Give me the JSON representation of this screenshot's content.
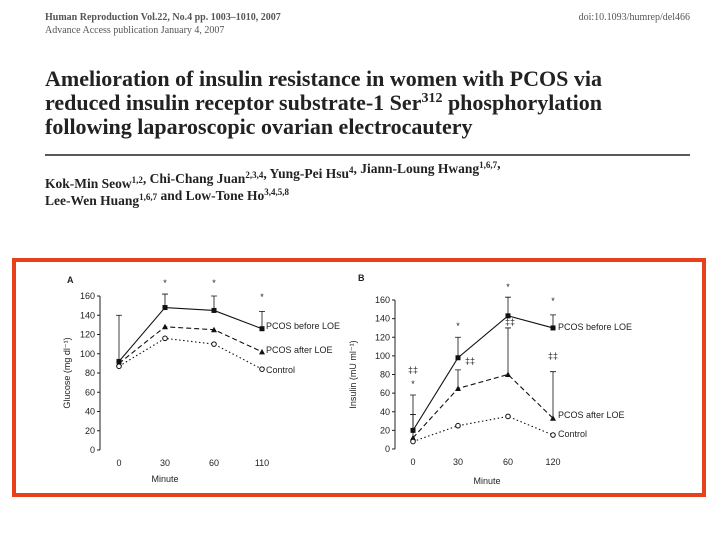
{
  "header": {
    "journal": "Human Reproduction Vol.22, No.4 pp. 1003–1010, 2007",
    "doi": "doi:10.1093/humrep/del466",
    "advance": "Advance Access publication January 4, 2007"
  },
  "title": {
    "line1": "Amelioration of insulin resistance in women with PCOS via",
    "line2": "reduced insulin receptor substrate-1 Ser",
    "line2_sup": "312",
    "line2_end": " phosphorylation",
    "line3": "following laparoscopic ovarian electrocautery"
  },
  "authors": [
    [
      {
        "text": "Kok-Min Seow",
        "sup": "1,2"
      },
      {
        "text": ", Chi-Chang Juan",
        "sup": "2,3,4"
      },
      {
        "text": ", Yung-Pei Hsu",
        "sup": "4"
      },
      {
        "text": ", Jiann-Loung Hwang",
        "sup": "1,6,7"
      },
      {
        "text": ","
      }
    ],
    [
      {
        "text": "Lee-Wen Huang",
        "sup": "1,6,7"
      },
      {
        "text": " and Low-Tone Ho",
        "sup": "3,4,5,8"
      }
    ]
  ],
  "chart_data": [
    {
      "type": "line",
      "panel": "A",
      "categories": [
        "0",
        "30",
        "60",
        "110"
      ],
      "xlabel": "Minute",
      "ylabel": "Glucose (mg dl⁻¹)",
      "ylim": [
        0,
        160
      ],
      "yticks": [
        0,
        20,
        40,
        60,
        80,
        100,
        120,
        140,
        160
      ],
      "legend": "inline-right",
      "series": [
        {
          "name": "PCOS before LOE",
          "color": "#111",
          "linestyle": "solid",
          "marker": "square",
          "values": [
            92,
            148,
            145,
            126
          ],
          "errors": [
            48,
            14,
            15,
            18
          ]
        },
        {
          "name": "PCOS after LOE",
          "color": "#111",
          "linestyle": "dashed",
          "marker": "triangle",
          "values": [
            90,
            128,
            125,
            102
          ]
        },
        {
          "name": "Control",
          "color": "#111",
          "linestyle": "dotted",
          "marker": "circle",
          "values": [
            87,
            116,
            110,
            84
          ]
        }
      ],
      "annotations": [
        "*",
        "*",
        "*"
      ]
    },
    {
      "type": "line",
      "panel": "B",
      "categories": [
        "0",
        "30",
        "60",
        "120"
      ],
      "xlabel": "Minute",
      "ylabel": "Insulin (mU ml⁻¹)",
      "ylim": [
        0,
        160
      ],
      "yticks": [
        0,
        20,
        40,
        60,
        80,
        100,
        120,
        140,
        160
      ],
      "legend": "inline-right",
      "series": [
        {
          "name": "PCOS before LOE",
          "color": "#111",
          "linestyle": "solid",
          "marker": "square",
          "values": [
            20,
            98,
            143,
            130
          ],
          "errors": [
            38,
            22,
            20,
            14
          ]
        },
        {
          "name": "PCOS after LOE",
          "color": "#111",
          "linestyle": "dashed",
          "marker": "triangle",
          "values": [
            12,
            65,
            80,
            33
          ],
          "errors": [
            25,
            20,
            50,
            50
          ]
        },
        {
          "name": "Control",
          "color": "#111",
          "linestyle": "dotted",
          "marker": "circle",
          "values": [
            8,
            25,
            35,
            15
          ]
        }
      ],
      "annotations": [
        "‡‡",
        "*",
        "*",
        "‡‡",
        "*",
        "‡‡",
        "*",
        "‡‡"
      ]
    }
  ]
}
